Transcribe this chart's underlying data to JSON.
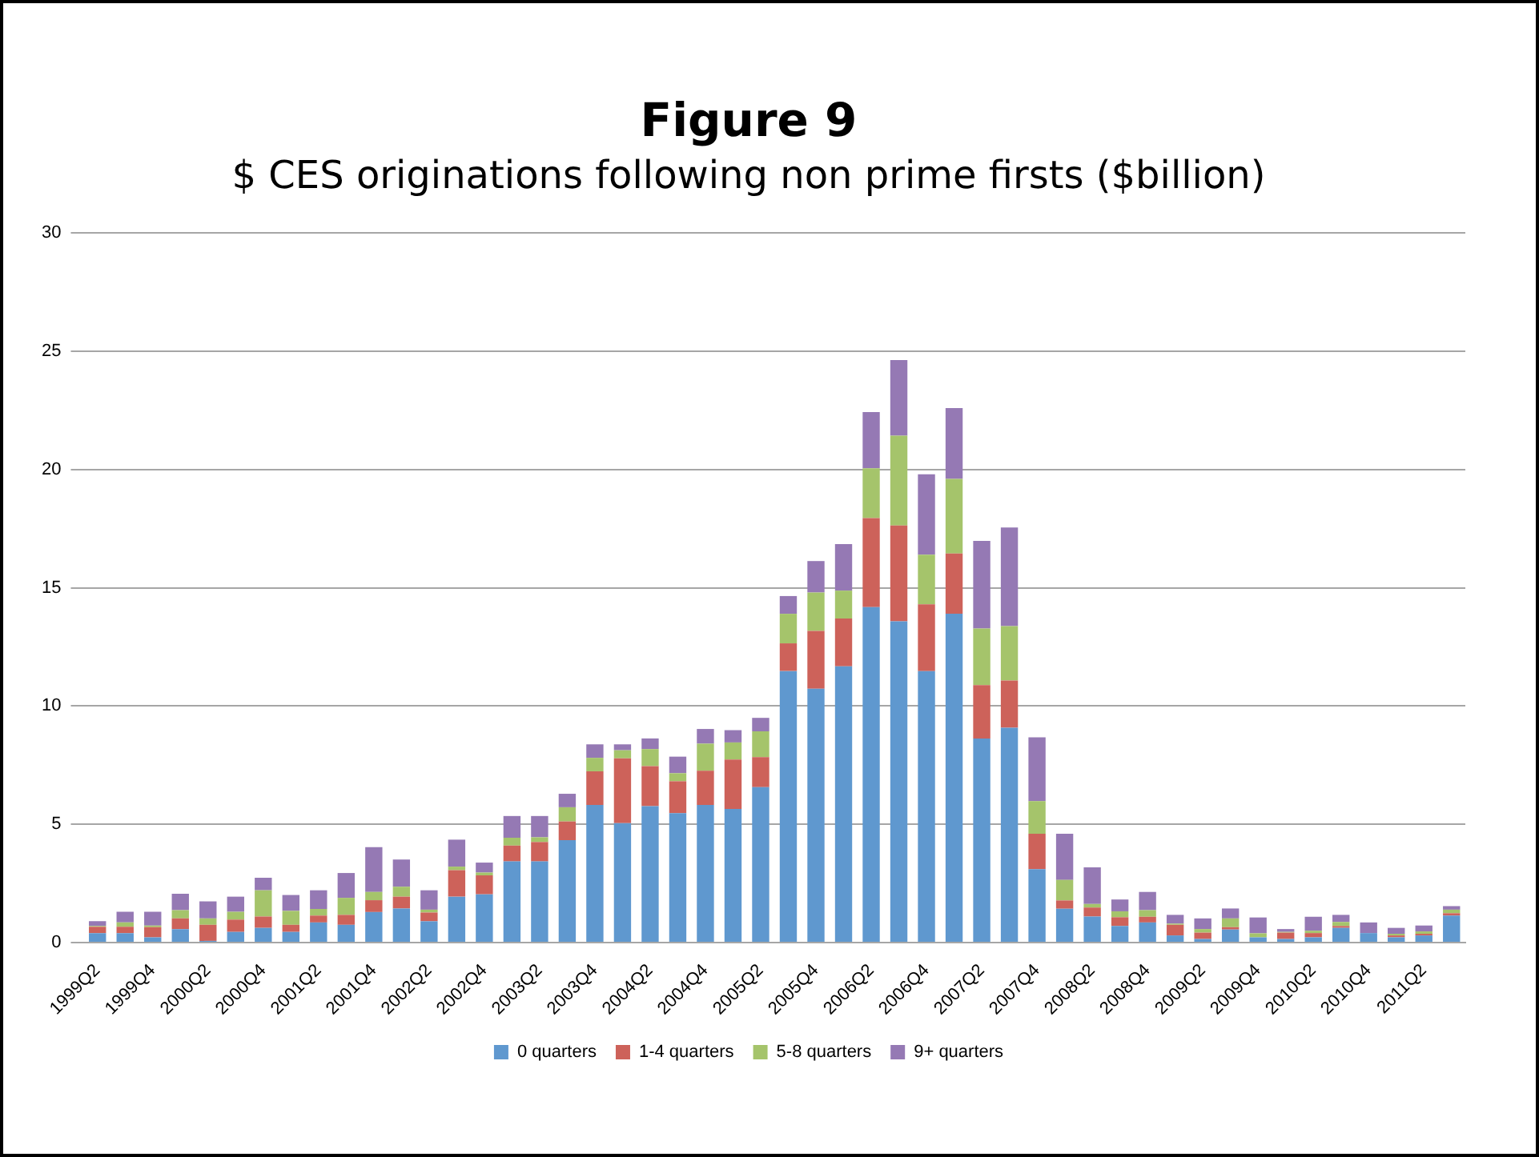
{
  "chart_data": {
    "type": "bar",
    "title": "Figure 9",
    "subtitle": "$ CES originations following non prime firsts ($billion)",
    "categories": [
      "1999Q2",
      null,
      "1999Q4",
      null,
      "2000Q2",
      null,
      "2000Q4",
      null,
      "2001Q2",
      null,
      "2001Q4",
      null,
      "2002Q2",
      null,
      "2002Q4",
      null,
      "2003Q2",
      null,
      "2003Q4",
      null,
      "2004Q2",
      null,
      "2004Q4",
      null,
      "2005Q2",
      null,
      "2005Q4",
      null,
      "2006Q2",
      null,
      "2006Q4",
      null,
      "2007Q2",
      null,
      "2007Q4",
      null,
      "2008Q2",
      null,
      "2008Q4",
      null,
      "2009Q2",
      null,
      "2009Q4",
      null,
      "2010Q2",
      null,
      "2010Q4",
      null,
      "2011Q2",
      null
    ],
    "stacked": true,
    "series": [
      {
        "name": "0 quarters",
        "color": "#5f98cf",
        "values": [
          0.4,
          0.4,
          0.22,
          0.57,
          0.07,
          0.45,
          0.62,
          0.45,
          0.85,
          0.75,
          1.29,
          1.44,
          0.9,
          1.94,
          2.04,
          3.43,
          3.43,
          4.33,
          5.82,
          5.05,
          5.77,
          5.47,
          5.82,
          5.65,
          6.57,
          11.48,
          10.73,
          11.68,
          14.18,
          13.58,
          11.48,
          13.9,
          8.63,
          9.08,
          3.1,
          1.43,
          1.1,
          0.7,
          0.85,
          0.3,
          0.15,
          0.55,
          0.22,
          0.15,
          0.22,
          0.62,
          0.4,
          0.22,
          0.3,
          1.14
        ]
      },
      {
        "name": "1-4 quarters",
        "color": "#cd625a",
        "values": [
          0.27,
          0.27,
          0.43,
          0.45,
          0.68,
          0.52,
          0.48,
          0.3,
          0.29,
          0.42,
          0.5,
          0.5,
          0.37,
          1.12,
          0.8,
          0.67,
          0.82,
          0.79,
          1.42,
          2.74,
          1.69,
          1.35,
          1.44,
          2.09,
          1.27,
          1.17,
          2.45,
          2.02,
          3.77,
          4.05,
          2.82,
          2.55,
          2.25,
          2.0,
          1.5,
          0.35,
          0.38,
          0.37,
          0.24,
          0.45,
          0.27,
          0.1,
          null,
          0.27,
          0.18,
          0.08,
          0.0,
          0.08,
          0.07,
          0.1
        ]
      },
      {
        "name": "5-8 quarters",
        "color": "#a5c46b",
        "values": [
          0.03,
          0.18,
          0.07,
          0.35,
          0.27,
          0.33,
          1.11,
          0.59,
          0.28,
          0.72,
          0.35,
          0.42,
          0.12,
          0.15,
          0.12,
          0.33,
          0.2,
          0.6,
          0.57,
          0.34,
          0.72,
          0.34,
          1.15,
          0.72,
          1.09,
          1.25,
          1.62,
          1.18,
          2.1,
          3.8,
          2.1,
          3.15,
          2.4,
          2.3,
          1.38,
          0.87,
          0.15,
          0.25,
          0.28,
          0.05,
          0.15,
          0.37,
          0.17,
          0.03,
          0.1,
          0.17,
          null,
          0.07,
          0.1,
          0.15
        ]
      },
      {
        "name": "9+ quarters",
        "color": "#9579b4",
        "values": [
          0.2,
          0.45,
          0.58,
          0.69,
          0.72,
          0.64,
          0.53,
          0.67,
          0.79,
          1.05,
          1.89,
          1.15,
          0.82,
          1.14,
          0.42,
          0.92,
          0.9,
          0.57,
          0.57,
          0.25,
          0.45,
          0.7,
          0.62,
          0.52,
          0.57,
          0.75,
          1.33,
          1.97,
          2.38,
          3.2,
          3.4,
          3.0,
          3.7,
          4.17,
          2.7,
          1.95,
          1.55,
          0.5,
          0.77,
          0.37,
          0.45,
          0.42,
          0.67,
          0.12,
          0.59,
          0.3,
          0.45,
          0.25,
          0.25,
          0.15
        ]
      }
    ],
    "ylim": [
      0,
      30
    ],
    "yticks": [
      0,
      5,
      10,
      15,
      20,
      25,
      30
    ],
    "grid": "y",
    "legend": "bottom"
  }
}
